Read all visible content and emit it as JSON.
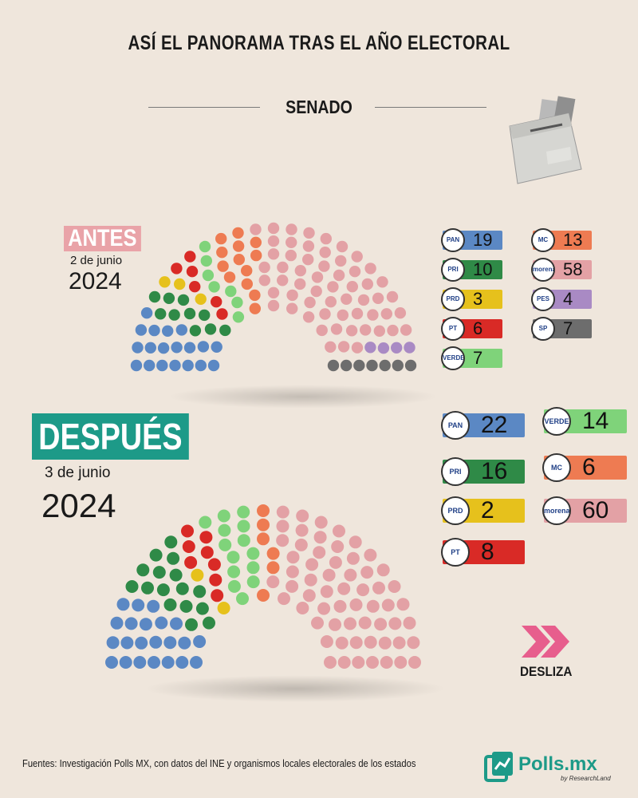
{
  "header": {
    "title": "ASÍ EL PANORAMA TRAS EL AÑO ELECTORAL",
    "subtitle": "SENADO"
  },
  "sections": {
    "antes": {
      "label": "ANTES",
      "date": "2 de junio",
      "year": "2024"
    },
    "despues": {
      "label": "DESPUÉS",
      "date": "3 de junio",
      "year": "2024"
    }
  },
  "colors": {
    "pan": "#5b88c4",
    "pri": "#2f8a47",
    "prd": "#e6c11c",
    "pt": "#d92a26",
    "verde": "#7fd37a",
    "mc": "#ee7b52",
    "morena": "#e3a1a5",
    "pes": "#a98ac4",
    "sp": "#6d6d6d"
  },
  "logos": {
    "pan": "PAN",
    "pri": "PRI",
    "prd": "PRD",
    "pt": "PT",
    "verde": "VERDE",
    "mc": "MC",
    "morena": "morena",
    "pes": "PES",
    "sp": "SP"
  },
  "chart_data": [
    {
      "type": "parliament",
      "name": "ANTES",
      "series": [
        {
          "party": "pan",
          "value": 19
        },
        {
          "party": "pri",
          "value": 10
        },
        {
          "party": "prd",
          "value": 3
        },
        {
          "party": "pt",
          "value": 6
        },
        {
          "party": "verde",
          "value": 7
        },
        {
          "party": "mc",
          "value": 13
        },
        {
          "party": "morena",
          "value": 58
        },
        {
          "party": "pes",
          "value": 4
        },
        {
          "party": "sp",
          "value": 7
        }
      ]
    },
    {
      "type": "parliament",
      "name": "DESPUÉS",
      "series": [
        {
          "party": "pan",
          "value": 22
        },
        {
          "party": "pri",
          "value": 16
        },
        {
          "party": "prd",
          "value": 2
        },
        {
          "party": "pt",
          "value": 8
        },
        {
          "party": "verde",
          "value": 14
        },
        {
          "party": "mc",
          "value": 6
        },
        {
          "party": "morena",
          "value": 60
        }
      ]
    }
  ],
  "legend_antes": [
    {
      "party": "pan",
      "value": "19"
    },
    {
      "party": "mc",
      "value": "13"
    },
    {
      "party": "pri",
      "value": "10"
    },
    {
      "party": "morena",
      "value": "58"
    },
    {
      "party": "prd",
      "value": "3"
    },
    {
      "party": "pes",
      "value": "4"
    },
    {
      "party": "pt",
      "value": "6"
    },
    {
      "party": "sp",
      "value": "7"
    },
    {
      "party": "verde",
      "value": "7"
    }
  ],
  "legend_despues": [
    {
      "party": "pan",
      "value": "22"
    },
    {
      "party": "verde",
      "value": "14"
    },
    {
      "party": "pri",
      "value": "16"
    },
    {
      "party": "mc",
      "value": "6"
    },
    {
      "party": "prd",
      "value": "2"
    },
    {
      "party": "morena",
      "value": "60"
    },
    {
      "party": "pt",
      "value": "8"
    }
  ],
  "cta": {
    "label": "DESLIZA"
  },
  "footer": {
    "sources": "Fuentes: Investigación Polls MX, con datos del INE y organismos locales electorales de los estados",
    "brand": "Polls.mx",
    "tagline": "by ResearchLand"
  }
}
